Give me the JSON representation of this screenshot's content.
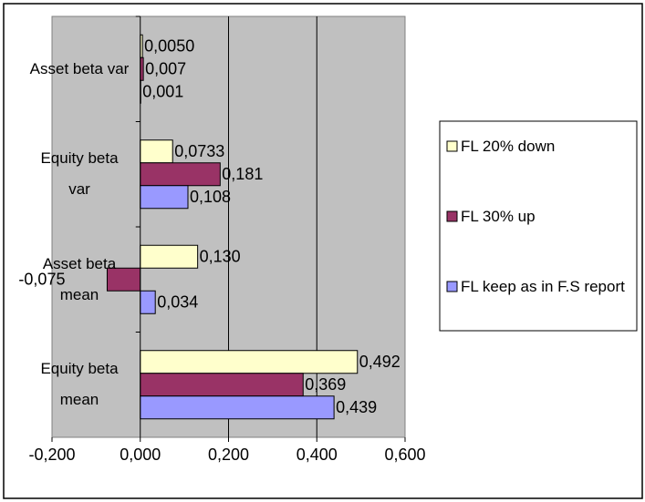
{
  "chart_data": {
    "type": "bar",
    "orientation": "horizontal",
    "categories": [
      "Equity beta mean",
      "Asset beta mean",
      "Equity beta var",
      "Asset beta var"
    ],
    "series": [
      {
        "name": "FL 20% down",
        "color": "#FFFFCC",
        "values": [
          0.492,
          0.13,
          0.0733,
          0.005
        ],
        "value_labels": [
          "0,492",
          "0,130",
          "0,0733",
          "0,0050"
        ]
      },
      {
        "name": "FL 30% up",
        "color": "#993366",
        "values": [
          0.369,
          -0.075,
          0.181,
          0.007
        ],
        "value_labels": [
          "0,369",
          "-0,075",
          "0,181",
          "0,007"
        ]
      },
      {
        "name": "FL keep as in F.S report",
        "color": "#9999FF",
        "values": [
          0.439,
          0.034,
          0.108,
          0.001
        ],
        "value_labels": [
          "0,439",
          "0,034",
          "0,108",
          "0,001"
        ]
      }
    ],
    "xlim": [
      -0.2,
      0.6
    ],
    "xticks": [
      {
        "value": -0.2,
        "label": "-0,200"
      },
      {
        "value": 0,
        "label": "0,000"
      },
      {
        "value": 0.2,
        "label": "0,200"
      },
      {
        "value": 0.4,
        "label": "0,400"
      },
      {
        "value": 0.6,
        "label": "0,600"
      }
    ],
    "grid": true,
    "plot_background": "#C0C0C0",
    "legend": "right"
  }
}
